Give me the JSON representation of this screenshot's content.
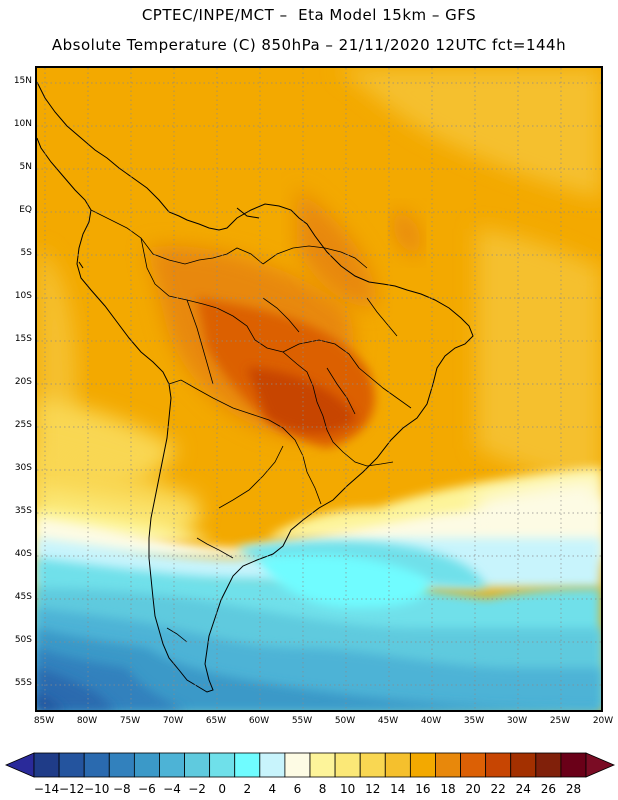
{
  "title": {
    "line1": "CPTEC/INPE/MCT –  Eta Model 15km – GFS",
    "line2": "Absolute Temperature (C) 850hPa – 21/11/2020 12UTC fct=144h"
  },
  "map": {
    "lat_labels": [
      "15N",
      "10N",
      "5N",
      "EQ",
      "5S",
      "10S",
      "15S",
      "20S",
      "25S",
      "30S",
      "35S",
      "40S",
      "45S",
      "50S",
      "55S"
    ],
    "lon_labels": [
      "85W",
      "80W",
      "75W",
      "70W",
      "65W",
      "60W",
      "55W",
      "50W",
      "45W",
      "40W",
      "35W",
      "30W",
      "25W",
      "20W"
    ]
  },
  "colorbar": {
    "labels": [
      "-14",
      "-12",
      "-10",
      "-8",
      "-6",
      "-4",
      "-2",
      "0",
      "2",
      "4",
      "6",
      "8",
      "10",
      "12",
      "14",
      "16",
      "18",
      "20",
      "22",
      "24",
      "26",
      "28"
    ],
    "colors": [
      "#1f3c88",
      "#24549e",
      "#2a6aaf",
      "#3281bd",
      "#3b99c8",
      "#4db3d6",
      "#5fcade",
      "#6fe0ea",
      "#6ffcff",
      "#c8f4fc",
      "#fdfbe4",
      "#fdf49a",
      "#fbe877",
      "#f9d752",
      "#f5c02d",
      "#f3a900",
      "#e8880b",
      "#dc6005",
      "#c74502",
      "#a33000",
      "#80200a",
      "#6a0018"
    ],
    "arrow_low_color": "#2a2a9a",
    "arrow_high_color": "#7a0c24"
  }
}
